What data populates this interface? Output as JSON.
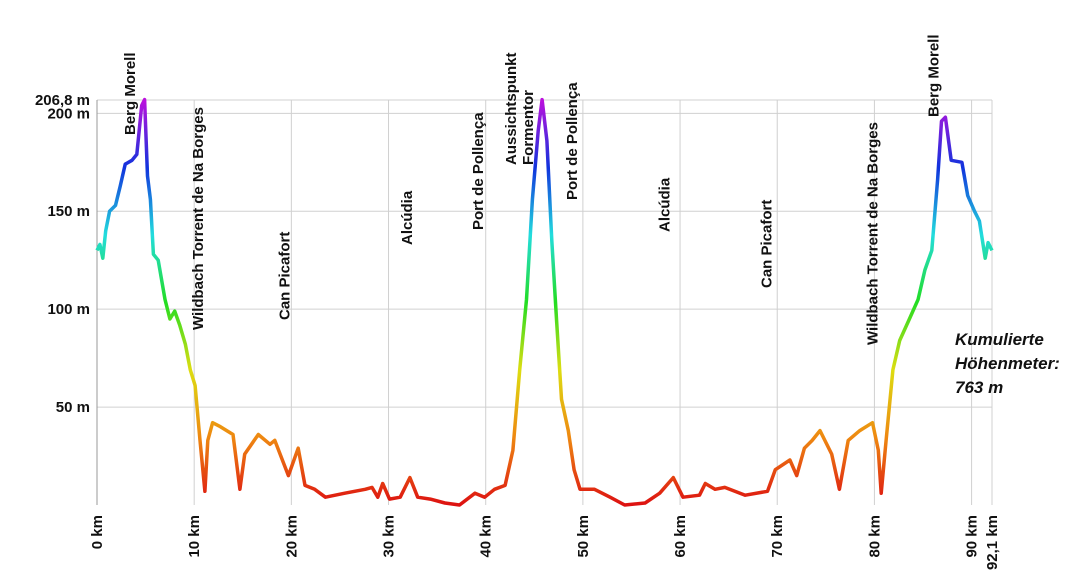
{
  "chart_data": {
    "type": "line",
    "x": [
      0,
      0.3,
      0.6,
      0.9,
      1.3,
      1.9,
      2.4,
      2.9,
      3.6,
      4.1,
      4.6,
      4.9,
      5.2,
      5.5,
      5.8,
      6.3,
      7.0,
      7.5,
      8.0,
      8.5,
      9.1,
      9.6,
      10.1,
      10.6,
      11.1,
      11.4,
      11.9,
      12.7,
      14.0,
      14.7,
      15.2,
      16.6,
      17.8,
      18.3,
      19.7,
      20.7,
      21.4,
      22.4,
      23.5,
      25.5,
      27.6,
      28.3,
      28.9,
      29.4,
      30.1,
      31.2,
      32.2,
      33.0,
      34.3,
      35.8,
      37.3,
      38.9,
      39.9,
      40.9,
      42.0,
      42.8,
      43.5,
      44.2,
      44.8,
      45.4,
      45.8,
      46.3,
      46.8,
      47.3,
      47.8,
      48.5,
      49.1,
      49.7,
      51.2,
      52.8,
      54.3,
      56.4,
      57.9,
      59.3,
      60.3,
      62.0,
      62.6,
      63.6,
      64.6,
      66.7,
      69.0,
      69.8,
      71.3,
      72.0,
      72.8,
      73.6,
      74.4,
      75.6,
      76.4,
      77.3,
      78.5,
      79.8,
      80.4,
      80.7,
      81.2,
      81.9,
      82.6,
      83.6,
      84.5,
      85.2,
      85.9,
      86.5,
      86.9,
      87.3,
      87.9,
      89.0,
      89.6,
      90.3,
      90.8,
      91.4,
      91.7,
      92.1
    ],
    "values": [
      130,
      133,
      126,
      140,
      150,
      153,
      163,
      174,
      176,
      179,
      204,
      207,
      168,
      156,
      128,
      125,
      105,
      95,
      99,
      92,
      82,
      69,
      61,
      33,
      7,
      33,
      42,
      40,
      36,
      8,
      26,
      36,
      31,
      33,
      15,
      29,
      10,
      8,
      4,
      6,
      8,
      9,
      4,
      11,
      3,
      4,
      14,
      4,
      3,
      1,
      0,
      6,
      4,
      8,
      10,
      28,
      69,
      105,
      156,
      191,
      207,
      186,
      135,
      94,
      54,
      38,
      18,
      8,
      8,
      4,
      0,
      1,
      6,
      14,
      4,
      5,
      11,
      8,
      9,
      5,
      7,
      18,
      23,
      15,
      29,
      33,
      38,
      26,
      8,
      33,
      38,
      42,
      28,
      6,
      33,
      69,
      84,
      95,
      105,
      120,
      130,
      166,
      196,
      198,
      176,
      175,
      158,
      150,
      145,
      126,
      134,
      130
    ],
    "color_scale": [
      "#dd1111",
      "#ee8811",
      "#dddd11",
      "#22dd22",
      "#22dddd",
      "#1133dd",
      "#bb11dd"
    ],
    "xlim": [
      0,
      92.1
    ],
    "xticks": [
      {
        "value": 0,
        "label": "0 km"
      },
      {
        "value": 10,
        "label": "10 km"
      },
      {
        "value": 20,
        "label": "20 km"
      },
      {
        "value": 30,
        "label": "30 km"
      },
      {
        "value": 40,
        "label": "40 km"
      },
      {
        "value": 50,
        "label": "50 km"
      },
      {
        "value": 60,
        "label": "60 km"
      },
      {
        "value": 70,
        "label": "70 km"
      },
      {
        "value": 80,
        "label": "80 km"
      },
      {
        "value": 90,
        "label": "90 km"
      },
      {
        "value": 92.1,
        "label": "92,1 km"
      }
    ],
    "ylim": [
      0,
      206.8
    ],
    "yticks": [
      {
        "value": 50,
        "label": "50 m"
      },
      {
        "value": 100,
        "label": "100 m"
      },
      {
        "value": 150,
        "label": "150 m"
      },
      {
        "value": 200,
        "label": "200 m"
      },
      {
        "value": 206.8,
        "label": "206,8 m"
      }
    ],
    "grid": true,
    "annotations": [
      {
        "x": 3.4,
        "text": [
          "Berg Morell"
        ]
      },
      {
        "x": 10.4,
        "text": [
          "Wildbach Torrent de Na Borges"
        ]
      },
      {
        "x": 19.3,
        "text": [
          "Can Picafort"
        ]
      },
      {
        "x": 31.9,
        "text": [
          "Alcúdia"
        ]
      },
      {
        "x": 39.2,
        "text": [
          "Port de Pollença"
        ]
      },
      {
        "x": 43.5,
        "text": [
          "Aussichtspunkt",
          "Formentor"
        ]
      },
      {
        "x": 48.9,
        "text": [
          "Port de Pollença"
        ]
      },
      {
        "x": 58.4,
        "text": [
          "Alcúdia"
        ]
      },
      {
        "x": 68.9,
        "text": [
          "Can Picafort"
        ]
      },
      {
        "x": 79.8,
        "text": [
          "Wildbach Torrent de Na Borges"
        ]
      },
      {
        "x": 86.1,
        "text": [
          "Berg Morell"
        ]
      }
    ],
    "note": [
      "Kumulierte",
      "Höhenmeter:",
      "763 m"
    ]
  }
}
